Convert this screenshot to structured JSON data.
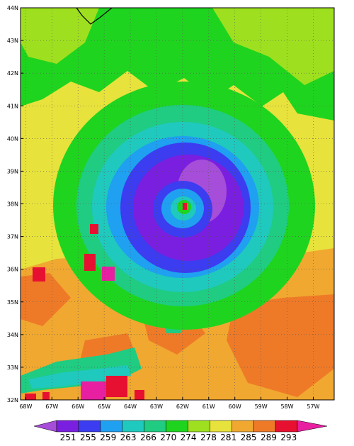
{
  "map": {
    "lat_labels": [
      "44N",
      "43N",
      "42N",
      "41N",
      "40N",
      "39N",
      "38N",
      "37N",
      "36N",
      "35N",
      "34N",
      "33N",
      "32N"
    ],
    "lon_labels": [
      "68W",
      "67W",
      "66W",
      "65W",
      "64W",
      "63W",
      "62W",
      "61W",
      "60W",
      "59W",
      "58W",
      "57W"
    ],
    "lat_range": [
      32,
      44
    ],
    "lon_range": [
      -68.2,
      -56.2
    ]
  },
  "colorbar": {
    "tick_labels": [
      "251",
      "255",
      "259",
      "263",
      "266",
      "270",
      "274",
      "278",
      "281",
      "285",
      "289",
      "293"
    ],
    "colors": [
      "#a64dd9",
      "#7a1fe0",
      "#3c3cf0",
      "#1fa0f0",
      "#1fc9bd",
      "#1fcc82",
      "#1fd41f",
      "#9ee01f",
      "#e8e23c",
      "#f0a830",
      "#ee7a28",
      "#e81030",
      "#e81fa0"
    ]
  }
}
